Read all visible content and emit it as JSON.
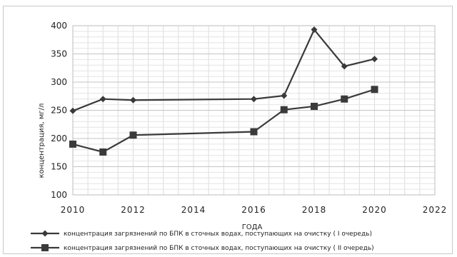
{
  "chart_data": {
    "type": "line",
    "xlabel": "ГОДА",
    "ylabel": "концентрация, мг/л",
    "xlim": [
      2010,
      2022
    ],
    "ylim": [
      100,
      400
    ],
    "x_ticks": [
      "2010",
      "2012",
      "2014",
      "2016",
      "2018",
      "2020",
      "2022"
    ],
    "y_ticks": [
      "100",
      "150",
      "200",
      "250",
      "300",
      "350",
      "400"
    ],
    "grid": true,
    "legend_position": "bottom",
    "series": [
      {
        "name": "концентрация загрязнений по БПК в сточных водах, поступающих на очистку ( I очередь)",
        "marker": "diamond",
        "color": "#3a3a3a",
        "x": [
          2010,
          2011,
          2012,
          2016,
          2017,
          2018,
          2019,
          2020
        ],
        "y": [
          249,
          270,
          268,
          270,
          276,
          393,
          328,
          341
        ]
      },
      {
        "name": "концентрация загрязнений по БПК в сточных водах, поступающих на очистку ( II очередь)",
        "marker": "square",
        "color": "#3a3a3a",
        "x": [
          2010,
          2011,
          2012,
          2016,
          2017,
          2018,
          2019,
          2020
        ],
        "y": [
          190,
          176,
          206,
          212,
          251,
          257,
          270,
          287
        ]
      }
    ]
  }
}
